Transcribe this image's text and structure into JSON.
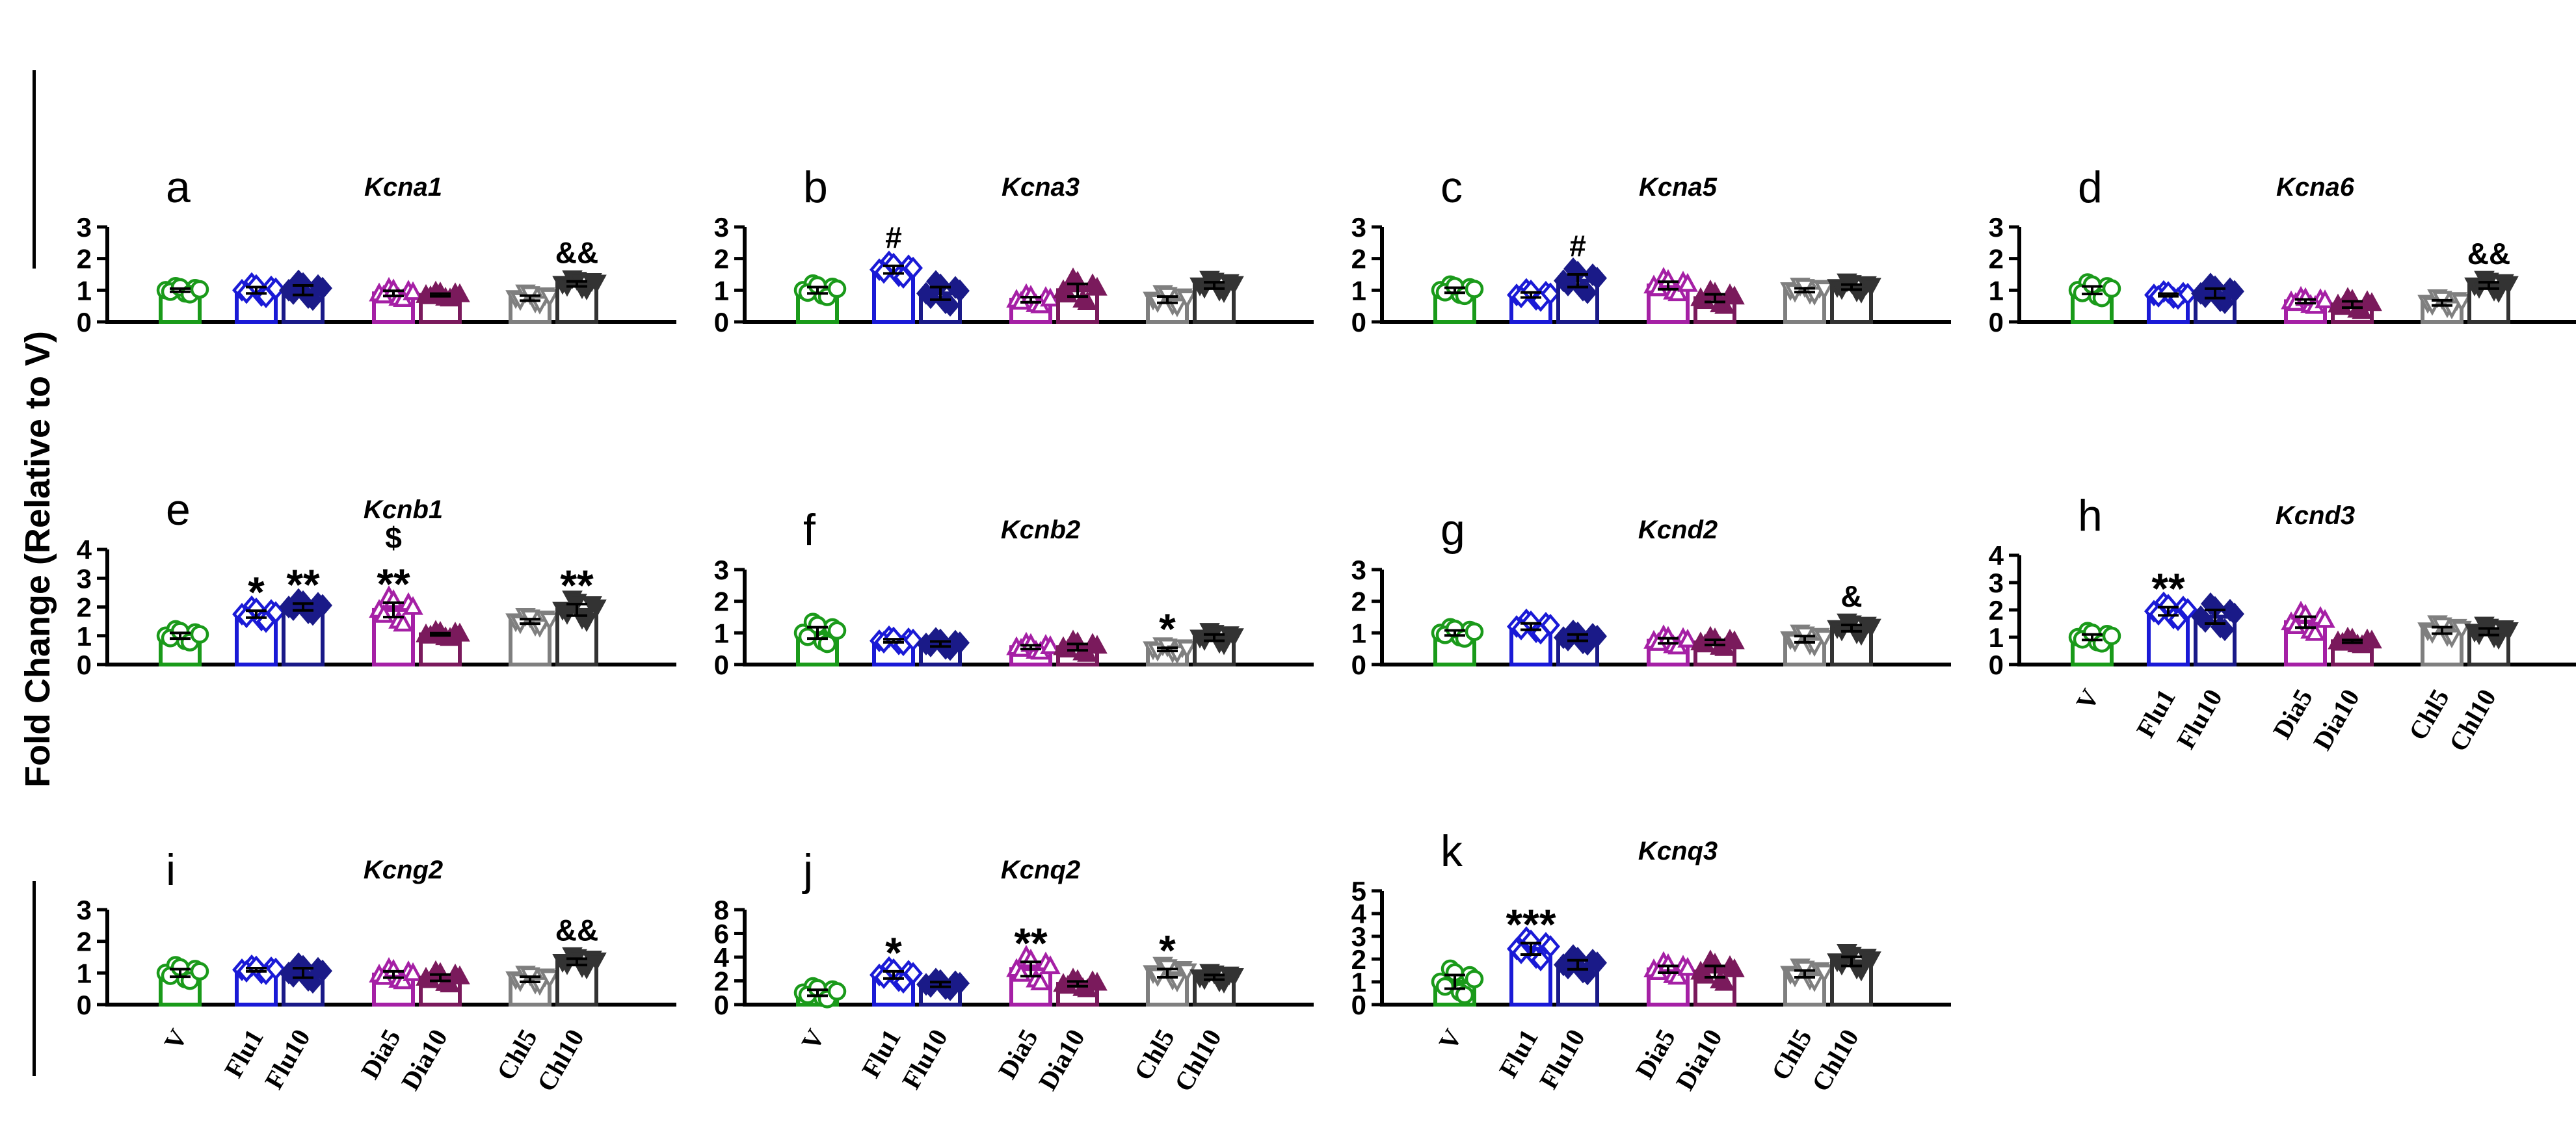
{
  "figure": {
    "ylabel": "Fold Change (Relative to V)",
    "groups": [
      "V",
      "Flu1",
      "Flu10",
      "Dia5",
      "Dia10",
      "Chl5",
      "Chl10"
    ],
    "colors": [
      "#1a9a1a",
      "#1a1ad6",
      "#1a1a88",
      "#a520a5",
      "#7a1a5c",
      "#7f7f7f",
      "#333333"
    ],
    "markers": [
      "open-circle",
      "open-diamond",
      "filled-diamond",
      "open-triangle",
      "filled-triangle",
      "open-down-triangle",
      "filled-down-triangle"
    ]
  },
  "chart_data": [
    {
      "type": "bar",
      "letter": "a",
      "title": "Kcna1",
      "ylim": [
        0,
        3
      ],
      "yticks": [
        "0",
        "1",
        "2",
        "3"
      ],
      "categories": [
        "V",
        "Flu1",
        "Flu10",
        "Dia5",
        "Dia10",
        "Chl5",
        "Chl10"
      ],
      "values": [
        1.0,
        1.0,
        1.0,
        0.9,
        0.85,
        0.75,
        1.2
      ],
      "errors": [
        0.05,
        0.1,
        0.15,
        0.08,
        0.04,
        0.08,
        0.08
      ],
      "annotations": [
        "",
        "",
        "",
        "",
        "",
        "",
        "&&"
      ],
      "tick_labels_visible": false
    },
    {
      "type": "bar",
      "letter": "b",
      "title": "Kcna3",
      "ylim": [
        0,
        3
      ],
      "yticks": [
        "0",
        "1",
        "2",
        "3"
      ],
      "categories": [
        "V",
        "Flu1",
        "Flu10",
        "Dia5",
        "Dia10",
        "Chl5",
        "Chl10"
      ],
      "values": [
        1.0,
        1.65,
        0.9,
        0.7,
        1.0,
        0.7,
        1.15
      ],
      "errors": [
        0.1,
        0.12,
        0.2,
        0.08,
        0.2,
        0.1,
        0.1
      ],
      "annotations": [
        "",
        "#",
        "",
        "",
        "",
        "",
        ""
      ],
      "tick_labels_visible": false
    },
    {
      "type": "bar",
      "letter": "c",
      "title": "Kcna5",
      "ylim": [
        0,
        3
      ],
      "yticks": [
        "0",
        "1",
        "2",
        "3"
      ],
      "categories": [
        "V",
        "Flu1",
        "Flu10",
        "Dia5",
        "Dia10",
        "Chl5",
        "Chl10"
      ],
      "values": [
        1.0,
        0.85,
        1.3,
        1.15,
        0.75,
        1.0,
        1.1
      ],
      "errors": [
        0.08,
        0.08,
        0.2,
        0.12,
        0.12,
        0.06,
        0.08
      ],
      "annotations": [
        "",
        "",
        "#",
        "",
        "",
        "",
        ""
      ],
      "tick_labels_visible": false
    },
    {
      "type": "bar",
      "letter": "d",
      "title": "Kcna6",
      "ylim": [
        0,
        3
      ],
      "yticks": [
        "0",
        "1",
        "2",
        "3"
      ],
      "categories": [
        "V",
        "Flu1",
        "Flu10",
        "Dia5",
        "Dia10",
        "Chl5",
        "Chl10"
      ],
      "values": [
        1.0,
        0.85,
        0.9,
        0.65,
        0.55,
        0.6,
        1.15
      ],
      "errors": [
        0.12,
        0.04,
        0.15,
        0.06,
        0.1,
        0.08,
        0.1
      ],
      "annotations": [
        "",
        "",
        "",
        "",
        "",
        "",
        "&&"
      ],
      "tick_labels_visible": false
    },
    {
      "type": "bar",
      "letter": "e",
      "title": "Kcnb1",
      "ylim": [
        0,
        4
      ],
      "yticks": [
        "0",
        "1",
        "2",
        "3",
        "4"
      ],
      "categories": [
        "V",
        "Flu1",
        "Flu10",
        "Dia5",
        "Dia10",
        "Chl5",
        "Chl10"
      ],
      "values": [
        1.0,
        1.75,
        2.0,
        1.9,
        1.05,
        1.5,
        1.9
      ],
      "errors": [
        0.1,
        0.12,
        0.12,
        0.25,
        0.04,
        0.08,
        0.2
      ],
      "annotations": [
        "",
        "*",
        "**",
        "$\n**",
        "",
        "",
        "**"
      ],
      "tick_labels_visible": false
    },
    {
      "type": "bar",
      "letter": "f",
      "title": "Kcnb2",
      "ylim": [
        0,
        3
      ],
      "yticks": [
        "0",
        "1",
        "2",
        "3"
      ],
      "categories": [
        "V",
        "Flu1",
        "Flu10",
        "Dia5",
        "Dia10",
        "Chl5",
        "Chl10"
      ],
      "values": [
        1.0,
        0.75,
        0.65,
        0.55,
        0.55,
        0.48,
        0.85
      ],
      "errors": [
        0.18,
        0.05,
        0.08,
        0.06,
        0.1,
        0.05,
        0.1
      ],
      "annotations": [
        "",
        "",
        "",
        "",
        "",
        "*",
        ""
      ],
      "tick_labels_visible": false
    },
    {
      "type": "bar",
      "letter": "g",
      "title": "Kcnd2",
      "ylim": [
        0,
        3
      ],
      "yticks": [
        "0",
        "1",
        "2",
        "3"
      ],
      "categories": [
        "V",
        "Flu1",
        "Flu10",
        "Dia5",
        "Dia10",
        "Chl5",
        "Chl10"
      ],
      "values": [
        1.0,
        1.2,
        0.85,
        0.75,
        0.7,
        0.8,
        1.15
      ],
      "errors": [
        0.08,
        0.1,
        0.1,
        0.08,
        0.08,
        0.1,
        0.1
      ],
      "annotations": [
        "",
        "",
        "",
        "",
        "",
        "",
        "&"
      ],
      "tick_labels_visible": false
    },
    {
      "type": "bar",
      "letter": "h",
      "title": "Kcnd3",
      "ylim": [
        0,
        4
      ],
      "yticks": [
        "0",
        "1",
        "2",
        "3",
        "4"
      ],
      "categories": [
        "V",
        "Flu1",
        "Flu10",
        "Dia5",
        "Dia10",
        "Chl5",
        "Chl10"
      ],
      "values": [
        1.0,
        1.95,
        1.75,
        1.55,
        0.85,
        1.25,
        1.2
      ],
      "errors": [
        0.1,
        0.15,
        0.25,
        0.2,
        0.05,
        0.12,
        0.12
      ],
      "annotations": [
        "",
        "**",
        "",
        "",
        "",
        "",
        ""
      ],
      "tick_labels_visible": true
    },
    {
      "type": "bar",
      "letter": "i",
      "title": "Kcng2",
      "ylim": [
        0,
        3
      ],
      "yticks": [
        "0",
        "1",
        "2",
        "3"
      ],
      "categories": [
        "V",
        "Flu1",
        "Flu10",
        "Dia5",
        "Dia10",
        "Chl5",
        "Chl10"
      ],
      "values": [
        1.0,
        1.1,
        1.0,
        0.95,
        0.85,
        0.8,
        1.35
      ],
      "errors": [
        0.12,
        0.05,
        0.15,
        0.1,
        0.1,
        0.08,
        0.1
      ],
      "annotations": [
        "",
        "",
        "",
        "",
        "",
        "",
        "&&"
      ],
      "tick_labels_visible": true
    },
    {
      "type": "bar",
      "letter": "j",
      "title": "Kcnq2",
      "ylim": [
        0,
        8
      ],
      "yticks": [
        "0",
        "2",
        "4",
        "6",
        "8"
      ],
      "categories": [
        "V",
        "Flu1",
        "Flu10",
        "Dia5",
        "Dia10",
        "Chl5",
        "Chl10"
      ],
      "values": [
        1.0,
        2.5,
        1.7,
        3.0,
        1.75,
        2.65,
        2.3
      ],
      "errors": [
        0.25,
        0.3,
        0.2,
        0.6,
        0.2,
        0.35,
        0.2
      ],
      "annotations": [
        "",
        "*",
        "",
        "**",
        "",
        "*",
        ""
      ],
      "tick_labels_visible": true
    },
    {
      "type": "bar",
      "letter": "k",
      "title": "Kcnq3",
      "ylim": [
        0,
        5
      ],
      "yticks": [
        "0",
        "1",
        "2",
        "3",
        "4",
        "5"
      ],
      "categories": [
        "V",
        "Flu1",
        "Flu10",
        "Dia5",
        "Dia10",
        "Chl5",
        "Chl10"
      ],
      "values": [
        1.0,
        2.45,
        1.75,
        1.55,
        1.45,
        1.35,
        1.9
      ],
      "errors": [
        0.3,
        0.25,
        0.2,
        0.15,
        0.25,
        0.15,
        0.2
      ],
      "annotations": [
        "",
        "***",
        "",
        "",
        "",
        "",
        ""
      ],
      "tick_labels_visible": true
    }
  ]
}
